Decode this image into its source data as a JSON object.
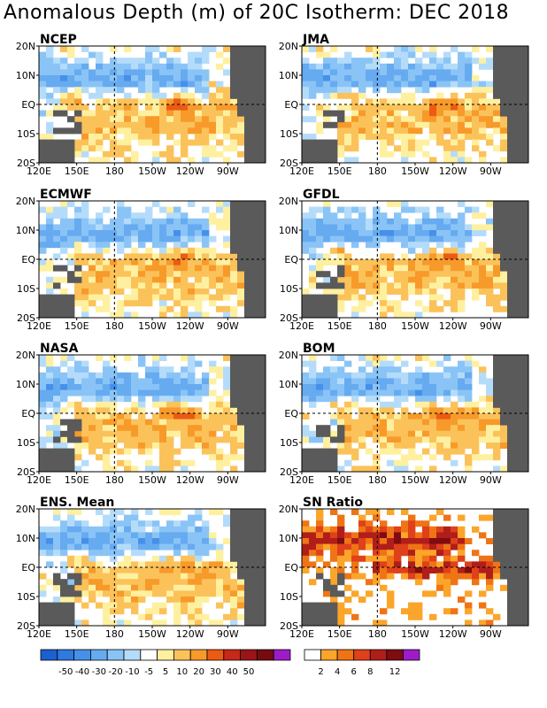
{
  "title": "Anomalous Depth (m) of 20C Isotherm: DEC 2018",
  "chart_data": {
    "type": "heatmap",
    "title": "Anomalous Depth (m) of 20C Isotherm: DEC 2018",
    "x_ticks": [
      "120E",
      "150E",
      "180",
      "150W",
      "120W",
      "90W"
    ],
    "y_ticks": [
      "20N",
      "10N",
      "EQ",
      "10S",
      "20S"
    ],
    "panels": [
      {
        "name": "NCEP",
        "kind": "anomaly"
      },
      {
        "name": "JMA",
        "kind": "anomaly"
      },
      {
        "name": "ECMWF",
        "kind": "anomaly"
      },
      {
        "name": "GFDL",
        "kind": "anomaly"
      },
      {
        "name": "NASA",
        "kind": "anomaly"
      },
      {
        "name": "BOM",
        "kind": "anomaly"
      },
      {
        "name": "ENS. Mean",
        "kind": "anomaly"
      },
      {
        "name": "SN Ratio",
        "kind": "snr"
      }
    ],
    "anomaly_colorbar": {
      "labels": [
        "-50",
        "-40",
        "-30",
        "-20",
        "-10",
        "-5",
        "5",
        "10",
        "20",
        "30",
        "40",
        "50"
      ],
      "colors": [
        "#1c5fd2",
        "#2f79e0",
        "#4690ea",
        "#66aaf0",
        "#8ac4f6",
        "#b4dcfa",
        "#ffffff",
        "#fff0a0",
        "#fbc25a",
        "#f79a2a",
        "#ec5a14",
        "#c8281a",
        "#9b1418",
        "#760c10",
        "#9e1cc8"
      ]
    },
    "snr_colorbar": {
      "labels": [
        "2",
        "4",
        "6",
        "8",
        "12"
      ],
      "colors": [
        "#ffffff",
        "#fba52a",
        "#ef7416",
        "#e0401a",
        "#b01e1a",
        "#7e0c10",
        "#9e1cc8"
      ]
    }
  }
}
